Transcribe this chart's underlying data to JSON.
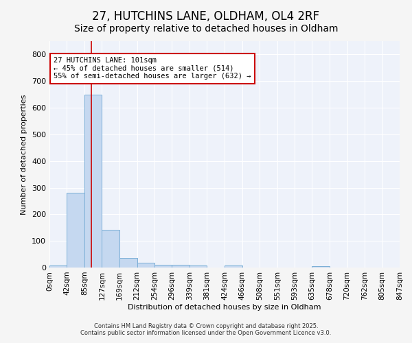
{
  "title": "27, HUTCHINS LANE, OLDHAM, OL4 2RF",
  "subtitle": "Size of property relative to detached houses in Oldham",
  "xlabel": "Distribution of detached houses by size in Oldham",
  "ylabel": "Number of detached properties",
  "bar_edges": [
    0,
    42,
    85,
    127,
    169,
    212,
    254,
    296,
    339,
    381,
    424,
    466,
    508,
    551,
    593,
    635,
    678,
    720,
    762,
    805,
    847
  ],
  "bar_heights": [
    8,
    280,
    650,
    142,
    37,
    18,
    10,
    10,
    7,
    0,
    7,
    0,
    0,
    0,
    0,
    6,
    0,
    0,
    0,
    0
  ],
  "bar_color": "#c5d8f0",
  "bar_edge_color": "#7aaed6",
  "property_size": 101,
  "red_line_color": "#cc0000",
  "annotation_line1": "27 HUTCHINS LANE: 101sqm",
  "annotation_line2": "← 45% of detached houses are smaller (514)",
  "annotation_line3": "55% of semi-detached houses are larger (632) →",
  "annotation_box_color": "#cc0000",
  "annotation_text_color": "#000000",
  "ylim": [
    0,
    850
  ],
  "yticks": [
    0,
    100,
    200,
    300,
    400,
    500,
    600,
    700,
    800
  ],
  "fig_bg_color": "#f5f5f5",
  "plot_bg_color": "#eef2fa",
  "grid_color": "#ffffff",
  "footer_line1": "Contains HM Land Registry data © Crown copyright and database right 2025.",
  "footer_line2": "Contains public sector information licensed under the Open Government Licence v3.0.",
  "title_fontsize": 12,
  "subtitle_fontsize": 10,
  "axis_label_fontsize": 8,
  "tick_label_fontsize": 7.5,
  "footer_fontsize": 6
}
